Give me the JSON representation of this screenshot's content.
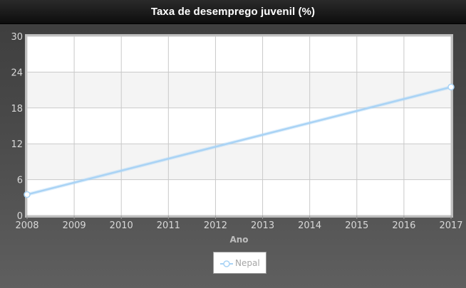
{
  "header": {
    "title": "Taxa de desemprego juvenil (%)"
  },
  "legend": {
    "items": [
      {
        "label": "Nepal",
        "color": "#a9d3f5"
      }
    ]
  },
  "colors": {
    "series": "#a9d3f5",
    "marker_fill": "#ffffff",
    "plot_background": "#ffffff",
    "band_background": "#f4f4f4",
    "grid": "#c9c9c9",
    "axis_text": "#d8d8d8"
  },
  "chart_data": {
    "type": "line",
    "title": "Taxa de desemprego juvenil (%)",
    "xlabel": "Ano",
    "ylabel": "",
    "x": [
      2008,
      2017
    ],
    "x_ticks": [
      "2008",
      "2009",
      "2010",
      "2011",
      "2012",
      "2013",
      "2014",
      "2015",
      "2016",
      "2017"
    ],
    "xlim": [
      2008,
      2017
    ],
    "ylim": [
      0,
      30
    ],
    "y_ticks": [
      "0",
      "6",
      "12",
      "18",
      "24",
      "30"
    ],
    "grid": true,
    "legend_position": "bottom-center",
    "series": [
      {
        "name": "Nepal",
        "x": [
          2008,
          2017
        ],
        "values": [
          3.5,
          21.5
        ]
      }
    ]
  }
}
